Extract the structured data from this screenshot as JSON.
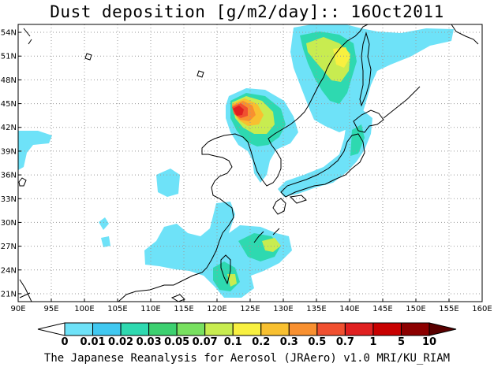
{
  "title": "Dust deposition [g/m2/day]:: 16Oct2011",
  "credit": "The Japanese Reanalysis for Aerosol (JRAero) v1.0 MRI/KU_RIAM",
  "chart_data": {
    "type": "heatmap",
    "variable": "Dust deposition",
    "units": "g/m2/day",
    "date": "16Oct2011",
    "lon_range": [
      90,
      160
    ],
    "lat_range": [
      20,
      55
    ],
    "lon_ticks": [
      "90E",
      "95E",
      "100E",
      "105E",
      "110E",
      "115E",
      "120E",
      "125E",
      "130E",
      "135E",
      "140E",
      "145E",
      "150E",
      "155E",
      "160E"
    ],
    "lat_ticks": [
      "21N",
      "24N",
      "27N",
      "30N",
      "33N",
      "36N",
      "39N",
      "42N",
      "45N",
      "48N",
      "51N",
      "54N"
    ],
    "grid": true,
    "colorbar": {
      "levels": [
        "0",
        "0.01",
        "0.02",
        "0.03",
        "0.05",
        "0.07",
        "0.1",
        "0.2",
        "0.3",
        "0.5",
        "0.7",
        "1",
        "5",
        "10"
      ],
      "colors": [
        "#ffffff",
        "#6ee2f8",
        "#40c8f0",
        "#2ed9b0",
        "#3cd070",
        "#78e060",
        "#c8ec50",
        "#f8f040",
        "#f8c030",
        "#f89030",
        "#f05030",
        "#e02020",
        "#c80000",
        "#8c0000",
        "#5a0000"
      ]
    }
  }
}
